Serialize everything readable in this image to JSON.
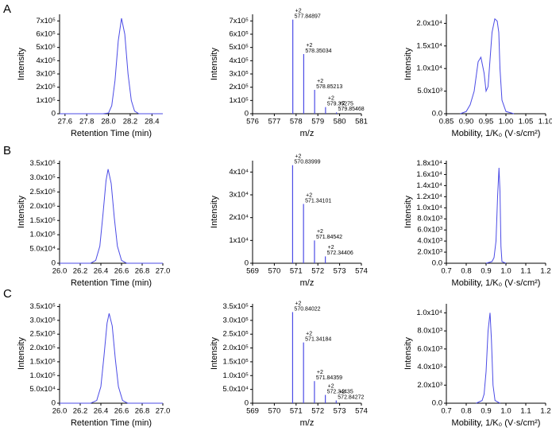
{
  "panel_labels": [
    "A",
    "B",
    "C"
  ],
  "chart_data": [
    {
      "type": "line",
      "x_label": "Retention Time (min)",
      "y_label": "Intensity",
      "color": "#4b4be6",
      "xlim": [
        27.55,
        28.5
      ],
      "xticks": [
        27.6,
        27.8,
        {
          "value": 28.0,
          "label": "28.0"
        },
        28.2,
        28.4
      ],
      "ylim": [
        0,
        750000
      ],
      "yticks": [
        0,
        {
          "value": 100000,
          "label": "1x10⁵"
        },
        {
          "value": 200000,
          "label": "2x10⁵"
        },
        {
          "value": 300000,
          "label": "3x10⁵"
        },
        {
          "value": 400000,
          "label": "4x10⁵"
        },
        {
          "value": 500000,
          "label": "5x10⁵"
        },
        {
          "value": 600000,
          "label": "6x10⁵"
        },
        {
          "value": 700000,
          "label": "7x10⁵"
        }
      ],
      "x": [
        27.55,
        27.95,
        28.0,
        28.03,
        28.06,
        28.09,
        28.12,
        28.15,
        28.18,
        28.21,
        28.24,
        28.28,
        28.5
      ],
      "values": [
        0,
        0,
        5000,
        60000,
        250000,
        550000,
        720000,
        600000,
        300000,
        100000,
        20000,
        0,
        0
      ]
    },
    {
      "type": "spectrum",
      "x_label": "m/z",
      "y_label": "Intensity",
      "color": "#4b4be6",
      "xlim": [
        576,
        581
      ],
      "xticks": [
        576,
        577,
        578,
        579,
        580,
        581
      ],
      "ylim": [
        0,
        750000
      ],
      "yticks": [
        0,
        {
          "value": 100000,
          "label": "1x10⁵"
        },
        {
          "value": 200000,
          "label": "2x10⁵"
        },
        {
          "value": 300000,
          "label": "3x10⁵"
        },
        {
          "value": 400000,
          "label": "4x10⁵"
        },
        {
          "value": 500000,
          "label": "5x10⁵"
        },
        {
          "value": 600000,
          "label": "6x10⁵"
        },
        {
          "value": 700000,
          "label": "7x10⁵"
        }
      ],
      "x": [
        577.84897,
        578.35034,
        578.85213,
        579.35275,
        579.85468
      ],
      "values": [
        710000,
        450000,
        180000,
        50000,
        10000
      ],
      "charges": [
        "+2",
        "+2",
        "+2",
        "+2",
        "+2"
      ]
    },
    {
      "type": "line",
      "x_label": "Mobility, 1/K₀ (V·s/cm²)",
      "y_label": "Intensity",
      "color": "#4b4be6",
      "xlim": [
        0.85,
        1.1
      ],
      "xticks": [
        0.85,
        {
          "value": 0.9,
          "label": "0.90"
        },
        0.95,
        {
          "value": 1.0,
          "label": "1.00"
        },
        1.05,
        {
          "value": 1.1,
          "label": "1.10"
        }
      ],
      "ylim": [
        0,
        22000
      ],
      "yticks": [
        {
          "value": 0,
          "label": "0.0"
        },
        {
          "value": 5000,
          "label": "5.0x10³"
        },
        {
          "value": 10000,
          "label": "1.0x10⁴"
        },
        {
          "value": 15000,
          "label": "1.5x10⁴"
        },
        {
          "value": 20000,
          "label": "2.0x10⁴"
        }
      ],
      "x": [
        0.885,
        0.9,
        0.91,
        0.92,
        0.93,
        0.937,
        0.945,
        0.95,
        0.955,
        0.96,
        0.965,
        0.972,
        0.978,
        0.982,
        0.985,
        0.99,
        1.0,
        1.02
      ],
      "values": [
        0,
        500,
        2000,
        5000,
        11500,
        12500,
        9000,
        5000,
        6000,
        12000,
        18000,
        21000,
        20500,
        18000,
        10000,
        3000,
        500,
        0
      ]
    },
    {
      "type": "line",
      "x_label": "Retention Time (min)",
      "y_label": "Intensity",
      "color": "#4b4be6",
      "xlim": [
        26.0,
        27.0
      ],
      "xticks": [
        {
          "value": 26.0,
          "label": "26.0"
        },
        26.2,
        26.4,
        26.6,
        26.8,
        {
          "value": 27.0,
          "label": "27.0"
        }
      ],
      "ylim": [
        0,
        360000
      ],
      "yticks": [
        0,
        {
          "value": 50000,
          "label": "5.0x10⁴"
        },
        {
          "value": 100000,
          "label": "1.0x10⁵"
        },
        {
          "value": 150000,
          "label": "1.5x10⁵"
        },
        {
          "value": 200000,
          "label": "2.0x10⁵"
        },
        {
          "value": 250000,
          "label": "2.5x10⁵"
        },
        {
          "value": 300000,
          "label": "3.0x10⁵"
        },
        {
          "value": 350000,
          "label": "3.5x10⁵"
        }
      ],
      "x": [
        26.0,
        26.3,
        26.35,
        26.39,
        26.42,
        26.45,
        26.47,
        26.5,
        26.53,
        26.56,
        26.6,
        26.65,
        27.0
      ],
      "values": [
        0,
        0,
        10000,
        60000,
        170000,
        290000,
        330000,
        280000,
        160000,
        60000,
        10000,
        0,
        0
      ]
    },
    {
      "type": "spectrum",
      "x_label": "m/z",
      "y_label": "Intensity",
      "color": "#4b4be6",
      "xlim": [
        569,
        574
      ],
      "xticks": [
        569,
        570,
        571,
        572,
        573,
        574
      ],
      "ylim": [
        0,
        45000
      ],
      "yticks": [
        0,
        {
          "value": 10000,
          "label": "1x10⁴"
        },
        {
          "value": 20000,
          "label": "2x10⁴"
        },
        {
          "value": 30000,
          "label": "3x10⁴"
        },
        {
          "value": 40000,
          "label": "4x10⁴"
        }
      ],
      "x": [
        570.83999,
        571.34101,
        571.84542,
        572.34406
      ],
      "values": [
        43000,
        26000,
        10000,
        3000
      ],
      "charges": [
        "+2",
        "+2",
        "+2",
        "+2"
      ]
    },
    {
      "type": "line",
      "x_label": "Mobility, 1/K₀ (V·s/cm²)",
      "y_label": "Intensity",
      "color": "#4b4be6",
      "xlim": [
        0.7,
        1.2
      ],
      "xticks": [
        0.7,
        0.8,
        0.9,
        {
          "value": 1.0,
          "label": "1.0"
        },
        1.1,
        1.2
      ],
      "ylim": [
        0,
        18500
      ],
      "yticks": [
        {
          "value": 0,
          "label": "0.0"
        },
        {
          "value": 2000,
          "label": "2.0x10³"
        },
        {
          "value": 4000,
          "label": "4.0x10³"
        },
        {
          "value": 6000,
          "label": "6.0x10³"
        },
        {
          "value": 8000,
          "label": "8.0x10³"
        },
        {
          "value": 10000,
          "label": "1.0x10⁴"
        },
        {
          "value": 12000,
          "label": "1.2x10⁴"
        },
        {
          "value": 14000,
          "label": "1.4x10⁴"
        },
        {
          "value": 16000,
          "label": "1.6x10⁴"
        },
        {
          "value": 18000,
          "label": "1.8x10⁴"
        }
      ],
      "x": [
        0.9,
        0.93,
        0.94,
        0.95,
        0.958,
        0.965,
        0.97,
        0.975,
        0.98,
        1.0
      ],
      "values": [
        0,
        300,
        1000,
        4000,
        12000,
        17200,
        13000,
        3000,
        300,
        0
      ]
    },
    {
      "type": "line",
      "x_label": "Retention Time (min)",
      "y_label": "Intensity",
      "color": "#4b4be6",
      "xlim": [
        26.0,
        27.0
      ],
      "xticks": [
        {
          "value": 26.0,
          "label": "26.0"
        },
        26.2,
        26.4,
        26.6,
        26.8,
        {
          "value": 27.0,
          "label": "27.0"
        }
      ],
      "ylim": [
        0,
        360000
      ],
      "yticks": [
        0,
        {
          "value": 50000,
          "label": "5.0x10⁴"
        },
        {
          "value": 100000,
          "label": "1.0x10⁵"
        },
        {
          "value": 150000,
          "label": "1.5x10⁵"
        },
        {
          "value": 200000,
          "label": "2.0x10⁵"
        },
        {
          "value": 250000,
          "label": "2.5x10⁵"
        },
        {
          "value": 300000,
          "label": "3.0x10⁵"
        },
        {
          "value": 350000,
          "label": "3.5x10⁵"
        }
      ],
      "x": [
        26.0,
        26.3,
        26.36,
        26.4,
        26.43,
        26.46,
        26.48,
        26.51,
        26.54,
        26.57,
        26.61,
        26.66,
        27.0
      ],
      "values": [
        0,
        0,
        10000,
        60000,
        170000,
        290000,
        325000,
        280000,
        160000,
        60000,
        10000,
        0,
        0
      ]
    },
    {
      "type": "spectrum",
      "x_label": "m/z",
      "y_label": "Intensity",
      "color": "#4b4be6",
      "xlim": [
        569,
        574
      ],
      "xticks": [
        569,
        570,
        571,
        572,
        573,
        574
      ],
      "ylim": [
        0,
        360000
      ],
      "yticks": [
        0,
        {
          "value": 50000,
          "label": "5.0x10⁴"
        },
        {
          "value": 100000,
          "label": "1.0x10⁵"
        },
        {
          "value": 150000,
          "label": "1.5x10⁵"
        },
        {
          "value": 200000,
          "label": "2.0x10⁵"
        },
        {
          "value": 250000,
          "label": "2.5x10⁵"
        },
        {
          "value": 300000,
          "label": "3.0x10⁵"
        },
        {
          "value": 350000,
          "label": "3.5x10⁵"
        }
      ],
      "x": [
        570.84022,
        571.34184,
        571.84359,
        572.34435,
        572.84272
      ],
      "values": [
        330000,
        220000,
        80000,
        30000,
        10000
      ],
      "charges": [
        "+2",
        "+2",
        "+2",
        "+2",
        "+2"
      ]
    },
    {
      "type": "line",
      "x_label": "Mobility, 1/K₀ (V·s/cm²)",
      "y_label": "Intensity",
      "color": "#4b4be6",
      "xlim": [
        0.7,
        1.2
      ],
      "xticks": [
        0.7,
        0.8,
        0.9,
        {
          "value": 1.0,
          "label": "1.0"
        },
        1.1,
        1.2
      ],
      "ylim": [
        0,
        11000
      ],
      "yticks": [
        {
          "value": 0,
          "label": "0.0"
        },
        {
          "value": 2000,
          "label": "2.0x10³"
        },
        {
          "value": 4000,
          "label": "4.0x10³"
        },
        {
          "value": 6000,
          "label": "6.0x10³"
        },
        {
          "value": 8000,
          "label": "8.0x10³"
        },
        {
          "value": 10000,
          "label": "1.0x10⁴"
        }
      ],
      "x": [
        0.85,
        0.88,
        0.89,
        0.9,
        0.91,
        0.92,
        0.927,
        0.935,
        0.945,
        0.97
      ],
      "values": [
        0,
        300,
        1000,
        3500,
        8000,
        10000,
        7000,
        2000,
        300,
        0
      ]
    }
  ]
}
